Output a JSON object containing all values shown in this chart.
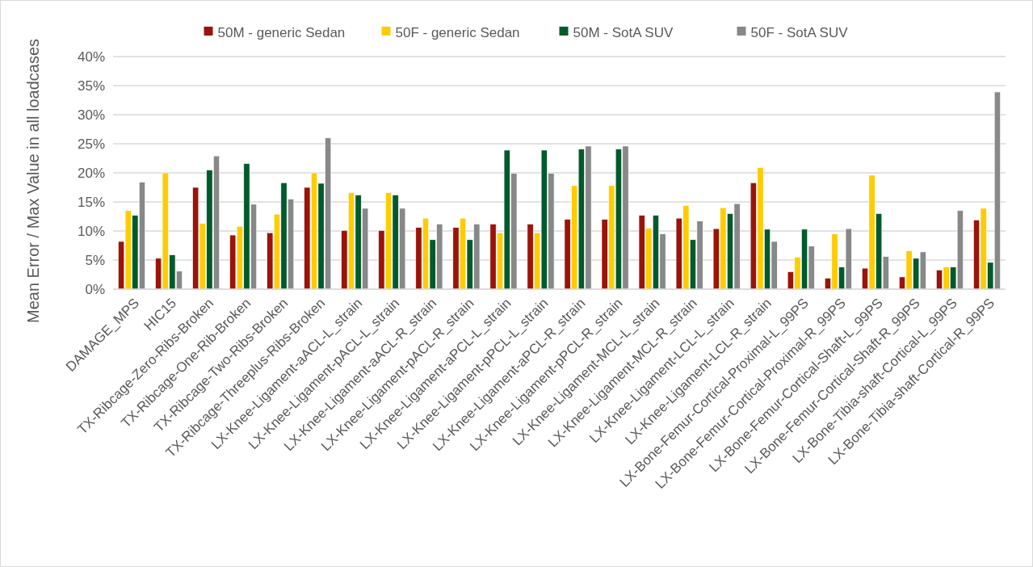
{
  "chart_data": {
    "type": "bar",
    "ylabel": "Mean Error / Max Value in all loadcases",
    "categories": [
      "DAMAGE_MPS",
      "HIC15",
      "TX-Ribcage-Zero-Ribs-Broken",
      "TX-Ribcage-One-Rib-Broken",
      "TX-Ribcage-Two-Ribs-Broken",
      "TX-Ribcage-Threeplus-Ribs-Broken",
      "LX-Knee-Ligament-aACL-L_strain",
      "LX-Knee-Ligament-pACL-L_strain",
      "LX-Knee-Ligament-aACL-R_strain",
      "LX-Knee-Ligament-pACL-R_strain",
      "LX-Knee-Ligament-aPCL-L_strain",
      "LX-Knee-Ligament-pPCL-L_strain",
      "LX-Knee-Ligament-aPCL-R_strain",
      "LX-Knee-Ligament-pPCL-R_strain",
      "LX-Knee-Ligament-MCL-L_strain",
      "LX-Knee-Ligament-MCL-R_strain",
      "LX-Knee-Ligament-LCL-L_strain",
      "LX-Knee-Ligament-LCL-R_strain",
      "LX-Bone-Femur-Cortical-Proximal-L_99PS",
      "LX-Bone-Femur-Cortical-Proximal-R_99PS",
      "LX-Bone-Femur-Cortical-Shaft-L_99PS",
      "LX-Bone-Femur-Cortical-Shaft-R_99PS",
      "LX-Bone-Tibia-shaft-Cortical-L_99PS",
      "LX-Bone-Tibia-shaft-Cortical-R_99PS"
    ],
    "series": [
      {
        "name": "50M - generic Sedan",
        "color": "#9b1309",
        "values": [
          8.2,
          5.3,
          17.5,
          9.3,
          9.7,
          17.5,
          10.1,
          10.1,
          10.6,
          10.6,
          11.2,
          11.2,
          12.0,
          12.0,
          12.7,
          12.2,
          10.4,
          18.3,
          3.0,
          1.9,
          3.6,
          2.1,
          3.3,
          11.9
        ]
      },
      {
        "name": "50F - generic Sedan",
        "color": "#ffcc00",
        "values": [
          13.5,
          20.0,
          11.3,
          10.8,
          12.9,
          20.0,
          16.6,
          16.6,
          12.2,
          12.2,
          9.7,
          9.7,
          17.8,
          17.8,
          10.5,
          14.4,
          14.0,
          20.9,
          5.5,
          9.5,
          19.6,
          6.6,
          3.8,
          13.9
        ]
      },
      {
        "name": "50M - SotA SUV",
        "color": "#005a2b",
        "values": [
          12.7,
          5.9,
          20.5,
          21.6,
          18.3,
          18.2,
          16.2,
          16.2,
          8.5,
          8.5,
          23.9,
          23.9,
          24.1,
          24.1,
          12.7,
          8.5,
          13.0,
          10.3,
          10.3,
          3.8,
          13.0,
          5.3,
          3.8,
          4.6
        ]
      },
      {
        "name": "50F - SotA SUV",
        "color": "#888888",
        "values": [
          18.4,
          3.1,
          22.9,
          14.6,
          15.5,
          26.0,
          13.9,
          13.9,
          11.2,
          11.2,
          19.9,
          19.9,
          24.6,
          24.6,
          9.5,
          11.7,
          14.7,
          8.2,
          7.4,
          10.4,
          5.6,
          6.4,
          13.5,
          33.9
        ]
      }
    ],
    "ylim": [
      0,
      40
    ],
    "yticks": [
      {
        "value": 0,
        "label": "0%"
      },
      {
        "value": 5,
        "label": "5%"
      },
      {
        "value": 10,
        "label": "10%"
      },
      {
        "value": 15,
        "label": "15%"
      },
      {
        "value": 20,
        "label": "20%"
      },
      {
        "value": 25,
        "label": "25%"
      },
      {
        "value": 30,
        "label": "30%"
      },
      {
        "value": 35,
        "label": "35%"
      },
      {
        "value": 40,
        "label": "40%"
      }
    ],
    "grid": "y",
    "legend": "top"
  }
}
